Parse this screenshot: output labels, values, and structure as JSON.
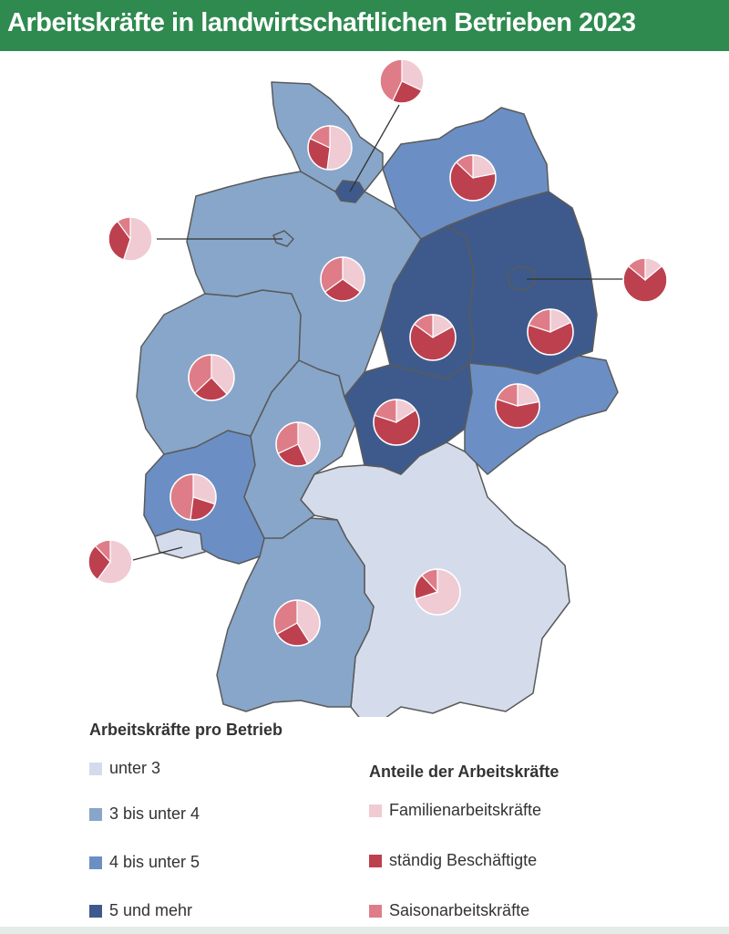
{
  "title": "Arbeitskräfte in landwirtschaftlichen Betrieben 2023",
  "colors": {
    "header": "#2e8a4f",
    "class_1": "#d4dcec",
    "class_2": "#87a6c9",
    "class_3": "#6b8fc4",
    "class_4": "#3e5a8c",
    "familie": "#f0cbd3",
    "staendig": "#bd404e",
    "saison": "#de7d88"
  },
  "legend_classes": {
    "title": "Arbeitskräfte pro Betrieb",
    "items": [
      {
        "label": "unter 3",
        "color": "#d4dcec"
      },
      {
        "label": "3 bis unter 4",
        "color": "#87a6c9"
      },
      {
        "label": "4 bis unter 5",
        "color": "#6b8fc4"
      },
      {
        "label": "5 und mehr",
        "color": "#3e5a8c"
      }
    ]
  },
  "legend_shares": {
    "title": "Anteile der Arbeitskräfte",
    "items": [
      {
        "label": "Familienarbeitskräfte",
        "color": "#f0cbd3"
      },
      {
        "label": "ständig Beschäftigte",
        "color": "#bd404e"
      },
      {
        "label": "Saisonarbeitskräfte",
        "color": "#de7d88"
      }
    ]
  },
  "chart_data": {
    "type": "pie",
    "series_names": [
      "Familienarbeitskräfte",
      "ständig Beschäftigte",
      "Saisonarbeitskräfte"
    ],
    "regions": [
      {
        "id": "schleswig-holstein",
        "class": 2,
        "shares": [
          0.52,
          0.3,
          0.18
        ]
      },
      {
        "id": "hamburg",
        "class": 4,
        "shares": [
          0.32,
          0.25,
          0.43
        ]
      },
      {
        "id": "mecklenburg-vorpommern",
        "class": 3,
        "shares": [
          0.22,
          0.65,
          0.13
        ]
      },
      {
        "id": "bremen",
        "class": 2,
        "shares": [
          0.55,
          0.35,
          0.1
        ]
      },
      {
        "id": "niedersachsen",
        "class": 2,
        "shares": [
          0.35,
          0.3,
          0.35
        ]
      },
      {
        "id": "berlin",
        "class": 4,
        "shares": [
          0.14,
          0.72,
          0.14
        ]
      },
      {
        "id": "brandenburg",
        "class": 4,
        "shares": [
          0.18,
          0.62,
          0.2
        ]
      },
      {
        "id": "sachsen-anhalt",
        "class": 4,
        "shares": [
          0.17,
          0.68,
          0.15
        ]
      },
      {
        "id": "nordrhein-westfalen",
        "class": 2,
        "shares": [
          0.38,
          0.25,
          0.37
        ]
      },
      {
        "id": "thueringen",
        "class": 4,
        "shares": [
          0.16,
          0.64,
          0.2
        ]
      },
      {
        "id": "sachsen",
        "class": 3,
        "shares": [
          0.22,
          0.58,
          0.2
        ]
      },
      {
        "id": "hessen",
        "class": 2,
        "shares": [
          0.43,
          0.25,
          0.32
        ]
      },
      {
        "id": "rheinland-pfalz",
        "class": 3,
        "shares": [
          0.3,
          0.22,
          0.48
        ]
      },
      {
        "id": "saarland",
        "class": 1,
        "shares": [
          0.6,
          0.28,
          0.12
        ]
      },
      {
        "id": "baden-wuerttemberg",
        "class": 2,
        "shares": [
          0.41,
          0.26,
          0.33
        ]
      },
      {
        "id": "bayern",
        "class": 1,
        "shares": [
          0.7,
          0.18,
          0.12
        ]
      }
    ]
  }
}
